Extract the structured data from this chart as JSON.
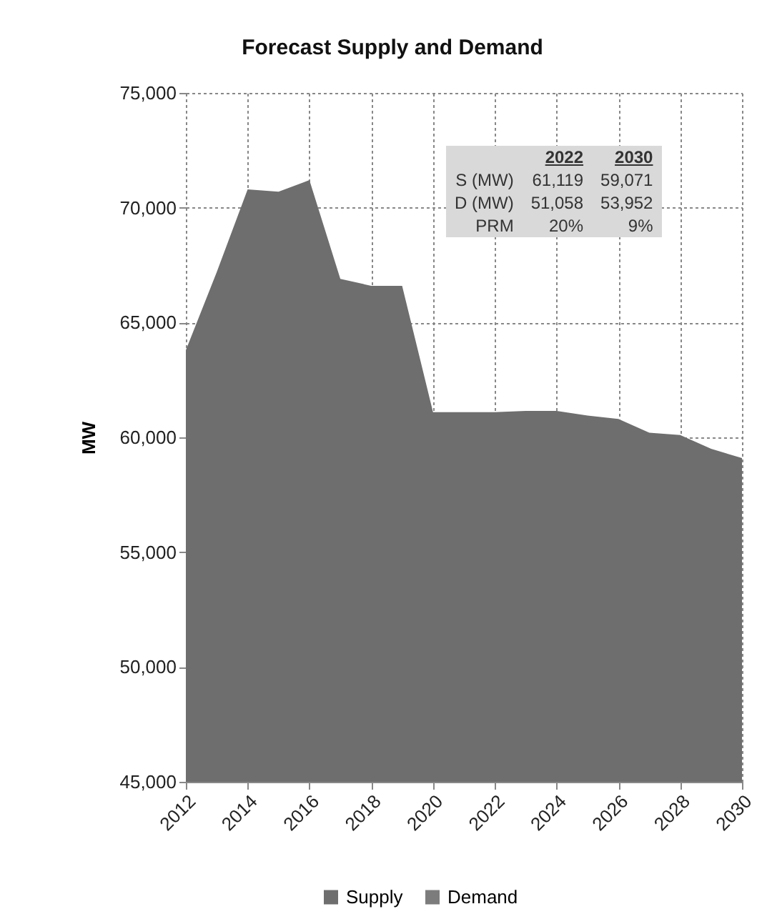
{
  "chart_data": {
    "type": "area",
    "title": "Forecast Supply and Demand",
    "ylabel": "MW",
    "x": [
      2012,
      2013,
      2014,
      2015,
      2016,
      2017,
      2018,
      2019,
      2020,
      2021,
      2022,
      2023,
      2024,
      2025,
      2026,
      2027,
      2028,
      2029,
      2030
    ],
    "series": [
      {
        "name": "Supply",
        "color": "#6e6e6e",
        "values": [
          63800,
          67200,
          70800,
          70700,
          71200,
          66900,
          66600,
          66600,
          61100,
          61100,
          61100,
          61150,
          61150,
          60950,
          60800,
          60200,
          60100,
          59500,
          59100
        ]
      },
      {
        "name": "Demand",
        "color": "#7c7c7c",
        "values": [
          null,
          null,
          null,
          null,
          null,
          null,
          null,
          null,
          null,
          null,
          null,
          null,
          null,
          null,
          null,
          null,
          null,
          null,
          null
        ]
      }
    ],
    "xlim": [
      2012,
      2030
    ],
    "xticks": [
      2012,
      2014,
      2016,
      2018,
      2020,
      2022,
      2024,
      2026,
      2028,
      2030
    ],
    "ylim": [
      45000,
      75000
    ],
    "yticks": [
      {
        "value": 45000,
        "label": "45,000"
      },
      {
        "value": 50000,
        "label": "50,000"
      },
      {
        "value": 55000,
        "label": "55,000"
      },
      {
        "value": 60000,
        "label": "60,000"
      },
      {
        "value": 65000,
        "label": "65,000"
      },
      {
        "value": 70000,
        "label": "70,000"
      },
      {
        "value": 75000,
        "label": "75,000"
      }
    ],
    "annotations": [
      "2022",
      "2030",
      "S (MW)",
      "61,119",
      "59,071",
      "D (MW)",
      "51,058",
      "53,952",
      "PRM",
      "20%",
      "9%"
    ],
    "grid": true,
    "legend": "bottom"
  }
}
